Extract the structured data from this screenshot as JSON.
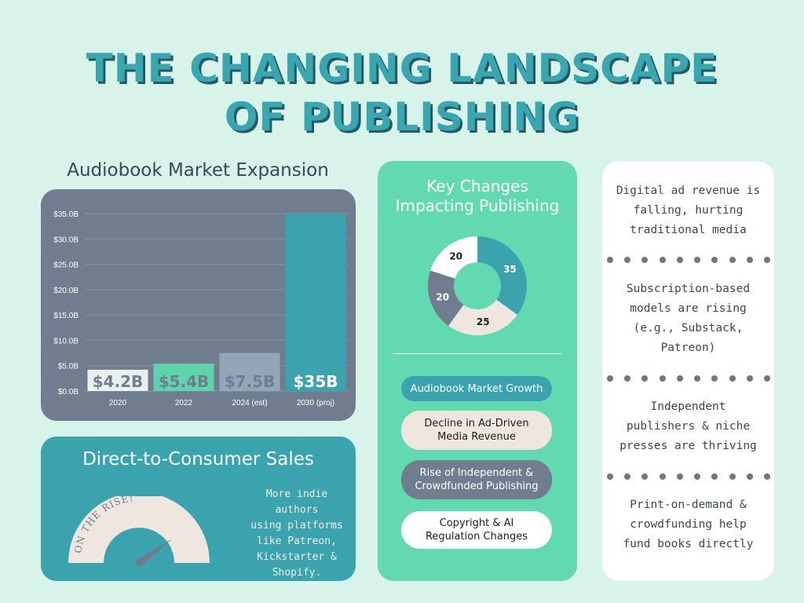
{
  "title": {
    "line1": "THE CHANGING LANDSCAPE",
    "line2": "OF PUBLISHING"
  },
  "audiobook": {
    "heading": "Audiobook Market Expansion",
    "chart_data": {
      "type": "bar",
      "title": "Audiobook Market Expansion",
      "categories": [
        "2020",
        "2022",
        "2024 (est)",
        "2030 (proj)"
      ],
      "values": [
        4.2,
        5.4,
        7.5,
        35
      ],
      "value_labels": [
        "$4.2B",
        "$5.4B",
        "$7.5B",
        "$35B"
      ],
      "ylim": [
        0,
        35
      ],
      "yticks": [
        "$0.0B",
        "$5.0B",
        "$10.0B",
        "$15.0B",
        "$20.0B",
        "$25.0B",
        "$30.0B",
        "$35.0B"
      ],
      "ytick_values": [
        0,
        5,
        10,
        15,
        20,
        25,
        30,
        35
      ],
      "bar_colors": [
        "#e9f1ee",
        "#5fd4ac",
        "#93a6b8",
        "#3aa3ad"
      ],
      "label_colors": [
        "#6f7d8e",
        "#6f7d8e",
        "#6f7d8e",
        "#ffffff"
      ],
      "grid": true,
      "xlabel": "",
      "ylabel": ""
    }
  },
  "d2c": {
    "title": "Direct-to-Consumer Sales",
    "gauge_label": "ON THE RISE!",
    "gauge_level": 0.8,
    "text_lines": [
      "More indie authors",
      "using platforms",
      "like Patreon,",
      "Kickstarter &",
      "Shopify."
    ]
  },
  "key_changes": {
    "title_line1": "Key Changes",
    "title_line2": "Impacting Publishing",
    "donut": {
      "chart_data": {
        "type": "pie",
        "labels": [
          "Audiobook Market Growth",
          "Decline in Ad-Driven Media Revenue",
          "Rise of Independent & Crowdfunded Publishing",
          "Copyright & AI Regulation Changes"
        ],
        "values": [
          35,
          25,
          20,
          20
        ],
        "colors": [
          "#3aa3ad",
          "#efe7df",
          "#6f7d8e",
          "#ffffff"
        ]
      }
    },
    "pills": [
      {
        "lines": [
          "Audiobook Market Growth"
        ],
        "bg": "#3aa3ad",
        "fg": "#ffffff"
      },
      {
        "lines": [
          "Decline in Ad-Driven",
          "Media Revenue"
        ],
        "bg": "#efe7df",
        "fg": "#1e1e1e"
      },
      {
        "lines": [
          "Rise of Independent &",
          "Crowdfunded Publishing"
        ],
        "bg": "#6f7d8e",
        "fg": "#ffffff"
      },
      {
        "lines": [
          "Copyright & AI",
          "Regulation Changes"
        ],
        "bg": "#ffffff",
        "fg": "#1e1e1e"
      }
    ]
  },
  "facts": [
    {
      "lines": [
        "Digital ad revenue is",
        "falling, hurting",
        "traditional media"
      ]
    },
    {
      "lines": [
        "Subscription-based",
        "models are rising",
        "(e.g., Substack,",
        "Patreon)"
      ]
    },
    {
      "lines": [
        "Independent",
        "publishers & niche",
        "presses are thriving"
      ]
    },
    {
      "lines": [
        "Print-on-demand &",
        "crowdfunding help",
        "fund books directly"
      ]
    }
  ]
}
